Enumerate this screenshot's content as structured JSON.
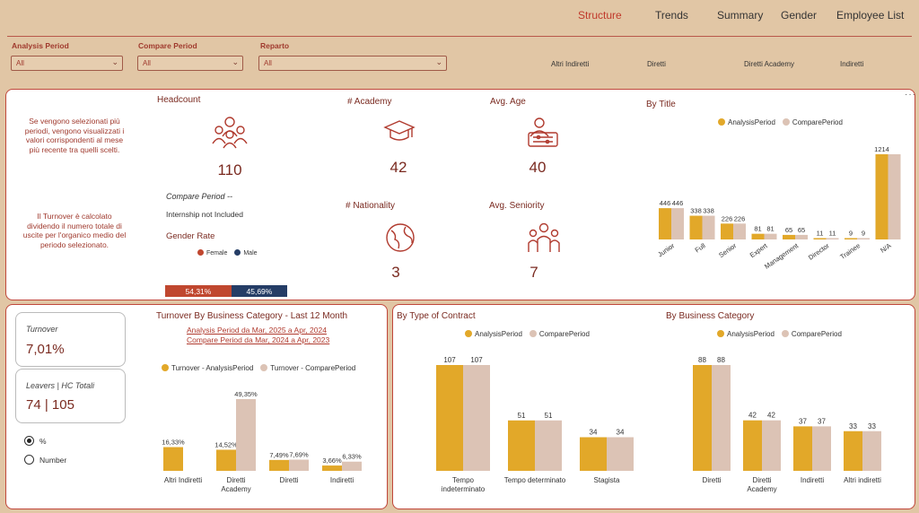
{
  "nav": {
    "structure": "Structure",
    "trends": "Trends",
    "summary": "Summary",
    "gender": "Gender",
    "employee_list": "Employee List"
  },
  "filters": {
    "analysis_label": "Analysis Period",
    "analysis_value": "All",
    "compare_label": "Compare Period",
    "compare_value": "All",
    "reparto_label": "Reparto",
    "reparto_value": "All",
    "chips": [
      "Altri Indiretti",
      "Diretti",
      "Diretti Academy",
      "Indiretti"
    ]
  },
  "top": {
    "note1": "Se vengono selezionati più periodi, vengono visualizzati i valori corrispondenti al mese più recente tra quelli scelti.",
    "note2": "Il Turnover è calcolato dividendo il numero totale di uscite per l'organico medio del periodo selezionato.",
    "headcount_label": "Headcount",
    "headcount_value": "110",
    "compare_period": "Compare Period --",
    "internship": "Internship not Included",
    "gender_rate_label": "Gender Rate",
    "female_label": "Female",
    "male_label": "Male",
    "female_pct": "54,31%",
    "male_pct": "45,69%",
    "female_share": 0.5431,
    "academy_label": "# Academy",
    "academy_value": "42",
    "avg_age_label": "Avg. Age",
    "avg_age_value": "40",
    "nationality_label": "# Nationality",
    "nationality_value": "3",
    "seniority_label": "Avg. Seniority",
    "seniority_value": "7",
    "by_title_label": "By Title"
  },
  "left_bottom": {
    "turnover_label": "Turnover",
    "turnover_value": "7,01%",
    "leavers_label": "Leavers | HC Totali",
    "leavers_value": "74 | 105",
    "radio_pct": "%",
    "radio_number": "Number",
    "turnover_title": "Turnover By Business Category -  Last 12 Month",
    "analysis_period_text": "Analysis Period da Mar, 2025 a Apr, 2024",
    "compare_period_text": "Compare Period da Mar, 2024 a Apr, 2023"
  },
  "right_bottom": {
    "contract_title": "By Type of Contract",
    "category_title": "By Business Category"
  },
  "colors": {
    "analysis": "#e2a829",
    "compare": "#dcc3b5",
    "female": "#c0472f",
    "male": "#253d66",
    "accent": "#c0392b"
  },
  "chart_data": [
    {
      "type": "bar",
      "title": "By Title",
      "categories": [
        "Junior",
        "Full",
        "Senior",
        "Expert",
        "Management",
        "Director",
        "Trainee",
        "N/A"
      ],
      "series": [
        {
          "name": "AnalysisPeriod",
          "values": [
            446,
            338,
            226,
            81,
            65,
            11,
            9,
            1214
          ]
        },
        {
          "name": "ComparePeriod",
          "values": [
            446,
            338,
            226,
            81,
            65,
            11,
            9,
            1214
          ]
        }
      ],
      "labels": [
        [
          "446",
          "446"
        ],
        [
          "338",
          "338"
        ],
        [
          "226",
          "226"
        ],
        [
          "81",
          "81"
        ],
        [
          "65",
          "65"
        ],
        [
          "11",
          "11"
        ],
        [
          "9",
          "9"
        ],
        [
          "1214",
          ""
        ]
      ],
      "ylim": [
        0,
        1214
      ]
    },
    {
      "type": "bar",
      "title": "Turnover By Business Category -  Last 12 Month",
      "categories": [
        "Altri Indiretti",
        "Diretti Academy",
        "Diretti",
        "Indiretti"
      ],
      "series": [
        {
          "name": "Turnover - AnalysisPeriod",
          "values": [
            16.33,
            14.52,
            7.49,
            3.66
          ]
        },
        {
          "name": "Turnover - ComparePeriod",
          "values": [
            0,
            49.35,
            7.69,
            6.33
          ]
        }
      ],
      "labels": [
        [
          "16,33%",
          ""
        ],
        [
          "14,52%",
          "49,35%"
        ],
        [
          "7,49%",
          "7,69%"
        ],
        [
          "3,66%",
          "6,33%"
        ]
      ],
      "ylim": [
        0,
        49.35
      ]
    },
    {
      "type": "bar",
      "title": "By Type of Contract",
      "categories": [
        "Tempo indeterminato",
        "Tempo determinato",
        "Stagista"
      ],
      "series": [
        {
          "name": "AnalysisPeriod",
          "values": [
            107,
            51,
            34
          ]
        },
        {
          "name": "ComparePeriod",
          "values": [
            107,
            51,
            34
          ]
        }
      ],
      "labels": [
        [
          "107",
          "107"
        ],
        [
          "51",
          "51"
        ],
        [
          "34",
          "34"
        ]
      ],
      "ylim": [
        0,
        107
      ]
    },
    {
      "type": "bar",
      "title": "By Business Category",
      "categories": [
        "Diretti",
        "Diretti Academy",
        "Indiretti",
        "Altri indiretti"
      ],
      "series": [
        {
          "name": "AnalysisPeriod",
          "values": [
            88,
            42,
            37,
            33
          ]
        },
        {
          "name": "ComparePeriod",
          "values": [
            88,
            42,
            37,
            33
          ]
        }
      ],
      "labels": [
        [
          "88",
          "88"
        ],
        [
          "42",
          "42"
        ],
        [
          "37",
          "37"
        ],
        [
          "33",
          "33"
        ]
      ],
      "ylim": [
        0,
        88
      ]
    }
  ]
}
